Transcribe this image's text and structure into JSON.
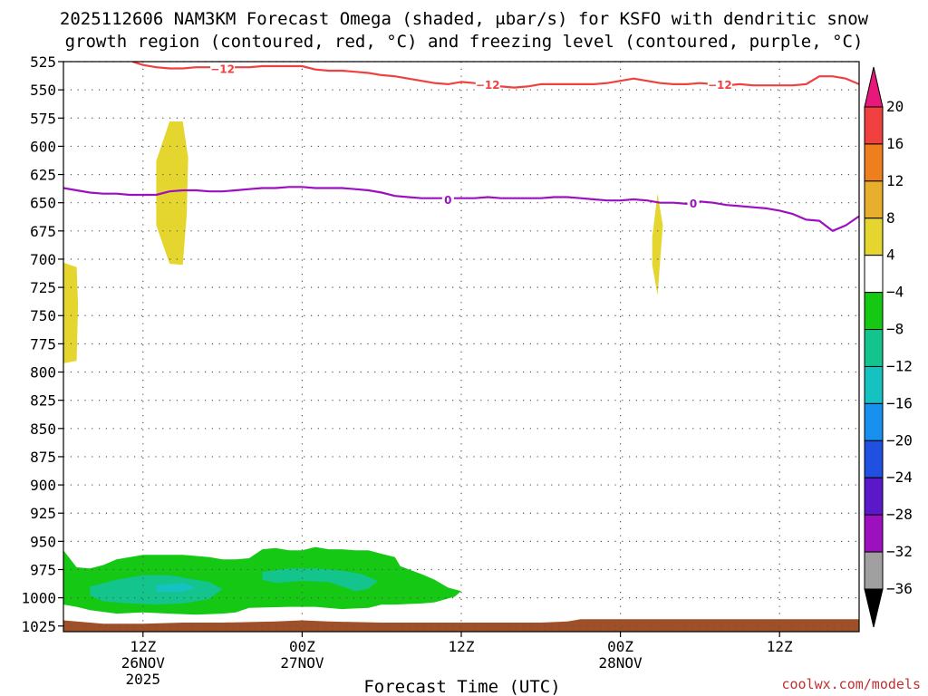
{
  "chart_data": {
    "type": "contour",
    "title": {
      "line1": "2025112606 NAM3KM Forecast Omega (shaded, μbar/s) for KSFO with dendritic snow",
      "line2": "growth region (contoured, red, °C) and freezing level (contoured, purple, °C)"
    },
    "xlabel": "Forecast Time (UTC)",
    "credit": "coolwx.com/models",
    "x_range_hours": [
      0,
      60
    ],
    "y_axis": {
      "scale": "pressure (hPa), inverted",
      "ylim": [
        1030,
        525
      ],
      "ticks": [
        525,
        550,
        575,
        600,
        625,
        650,
        675,
        700,
        725,
        750,
        775,
        800,
        825,
        850,
        875,
        900,
        925,
        950,
        975,
        1000,
        1025
      ]
    },
    "x_ticks": [
      {
        "hour": 6,
        "lines": [
          "12Z",
          "26NOV",
          "2025"
        ]
      },
      {
        "hour": 18,
        "lines": [
          "00Z",
          "27NOV"
        ]
      },
      {
        "hour": 30,
        "lines": [
          "12Z"
        ]
      },
      {
        "hour": 42,
        "lines": [
          "00Z",
          "28NOV"
        ]
      },
      {
        "hour": 54,
        "lines": [
          "12Z"
        ]
      }
    ],
    "colorbar": {
      "labels": [
        "20",
        "16",
        "12",
        "8",
        "4",
        "−4",
        "−8",
        "−12",
        "−16",
        "−20",
        "−24",
        "−28",
        "−32",
        "−36"
      ],
      "bins": [
        {
          "lo": 20,
          "hi": 24,
          "color": "#e8187a"
        },
        {
          "lo": 16,
          "hi": 20,
          "color": "#f04040"
        },
        {
          "lo": 12,
          "hi": 16,
          "color": "#ef7f1e"
        },
        {
          "lo": 8,
          "hi": 12,
          "color": "#e8ae2e"
        },
        {
          "lo": 4,
          "hi": 8,
          "color": "#e4d62f"
        },
        {
          "lo": -4,
          "hi": 4,
          "color": "#ffffff"
        },
        {
          "lo": -8,
          "hi": -4,
          "color": "#14c814"
        },
        {
          "lo": -12,
          "hi": -8,
          "color": "#13c48c"
        },
        {
          "lo": -16,
          "hi": -12,
          "color": "#16c1c1"
        },
        {
          "lo": -20,
          "hi": -16,
          "color": "#1890f0"
        },
        {
          "lo": -24,
          "hi": -20,
          "color": "#2050e0"
        },
        {
          "lo": -28,
          "hi": -24,
          "color": "#5a18c8"
        },
        {
          "lo": -32,
          "hi": -28,
          "color": "#9c10c0"
        },
        {
          "lo": -36,
          "hi": -32,
          "color": "#a0a0a0"
        },
        {
          "lo": -40,
          "hi": -36,
          "color": "#000000"
        }
      ]
    },
    "dendritic_isotherm": {
      "value_C": -12,
      "color": "#f04040",
      "label": "−12",
      "points": [
        [
          5.2,
          525
        ],
        [
          6,
          528
        ],
        [
          7,
          530
        ],
        [
          8,
          531
        ],
        [
          9,
          531
        ],
        [
          10,
          530
        ],
        [
          11,
          530
        ],
        [
          12,
          531
        ],
        [
          13,
          530
        ],
        [
          14,
          530
        ],
        [
          15,
          529
        ],
        [
          16,
          529
        ],
        [
          17,
          529
        ],
        [
          18,
          529
        ],
        [
          19,
          532
        ],
        [
          20,
          533
        ],
        [
          21,
          533
        ],
        [
          22,
          534
        ],
        [
          23,
          535
        ],
        [
          24,
          537
        ],
        [
          25,
          538
        ],
        [
          26,
          540
        ],
        [
          27,
          542
        ],
        [
          28,
          544
        ],
        [
          29,
          545
        ],
        [
          30,
          543
        ],
        [
          31,
          544
        ],
        [
          32,
          546
        ],
        [
          33,
          547
        ],
        [
          34,
          548
        ],
        [
          35,
          547
        ],
        [
          36,
          545
        ],
        [
          37,
          545
        ],
        [
          38,
          545
        ],
        [
          39,
          545
        ],
        [
          40,
          545
        ],
        [
          41,
          544
        ],
        [
          42,
          542
        ],
        [
          43,
          540
        ],
        [
          44,
          542
        ],
        [
          45,
          544
        ],
        [
          46,
          545
        ],
        [
          47,
          545
        ],
        [
          48,
          544
        ],
        [
          49,
          545
        ],
        [
          50,
          546
        ],
        [
          51,
          545
        ],
        [
          52,
          546
        ],
        [
          53,
          546
        ],
        [
          54,
          546
        ],
        [
          55,
          546
        ],
        [
          56,
          545
        ],
        [
          57,
          538
        ],
        [
          58,
          538
        ],
        [
          59,
          540
        ],
        [
          60,
          545
        ]
      ],
      "label_positions": [
        [
          12,
          532
        ],
        [
          32,
          546
        ],
        [
          49.5,
          546
        ]
      ]
    },
    "freezing_level": {
      "value_C": 0,
      "color": "#9c10c0",
      "label": "0",
      "points": [
        [
          0,
          637
        ],
        [
          1,
          639
        ],
        [
          2,
          641
        ],
        [
          3,
          642
        ],
        [
          4,
          642
        ],
        [
          5,
          643
        ],
        [
          6,
          643
        ],
        [
          7,
          643
        ],
        [
          8,
          640
        ],
        [
          9,
          639
        ],
        [
          10,
          639
        ],
        [
          11,
          640
        ],
        [
          12,
          640
        ],
        [
          13,
          639
        ],
        [
          14,
          638
        ],
        [
          15,
          637
        ],
        [
          16,
          637
        ],
        [
          17,
          636
        ],
        [
          18,
          636
        ],
        [
          19,
          637
        ],
        [
          20,
          637
        ],
        [
          21,
          637
        ],
        [
          22,
          638
        ],
        [
          23,
          639
        ],
        [
          24,
          641
        ],
        [
          25,
          644
        ],
        [
          26,
          645
        ],
        [
          27,
          646
        ],
        [
          28,
          646
        ],
        [
          29,
          646
        ],
        [
          30,
          646
        ],
        [
          31,
          646
        ],
        [
          32,
          645
        ],
        [
          33,
          646
        ],
        [
          34,
          646
        ],
        [
          35,
          646
        ],
        [
          36,
          646
        ],
        [
          37,
          645
        ],
        [
          38,
          645
        ],
        [
          39,
          646
        ],
        [
          40,
          647
        ],
        [
          41,
          648
        ],
        [
          42,
          648
        ],
        [
          43,
          647
        ],
        [
          44,
          648
        ],
        [
          45,
          650
        ],
        [
          46,
          650
        ],
        [
          47,
          651
        ],
        [
          48,
          649
        ],
        [
          49,
          650
        ],
        [
          50,
          652
        ],
        [
          51,
          653
        ],
        [
          52,
          654
        ],
        [
          53,
          655
        ],
        [
          54,
          657
        ],
        [
          55,
          660
        ],
        [
          56,
          665
        ],
        [
          57,
          666
        ],
        [
          58,
          675
        ],
        [
          59,
          670
        ],
        [
          60,
          662
        ]
      ],
      "label_positions": [
        [
          29,
          648
        ],
        [
          47.5,
          651
        ]
      ]
    },
    "omega_regions": [
      {
        "level": 4,
        "color": "#e4d62f",
        "points": [
          [
            0,
            703
          ],
          [
            1,
            707
          ],
          [
            1.1,
            740
          ],
          [
            1,
            790
          ],
          [
            0.1,
            792
          ],
          [
            0,
            792
          ]
        ]
      },
      {
        "level": 4,
        "color": "#e4d62f",
        "points": [
          [
            7,
            613
          ],
          [
            8,
            578
          ],
          [
            9,
            578
          ],
          [
            9.4,
            610
          ],
          [
            9.3,
            660
          ],
          [
            9,
            705
          ],
          [
            8,
            704
          ],
          [
            7,
            670
          ]
        ]
      },
      {
        "level": 4,
        "color": "#e4d62f",
        "points": [
          [
            44.4,
            680
          ],
          [
            44.8,
            642
          ],
          [
            45.2,
            670
          ],
          [
            44.8,
            732
          ],
          [
            44.4,
            705
          ]
        ]
      },
      {
        "level": -4,
        "color": "#14c814",
        "points": [
          [
            0,
            958
          ],
          [
            1,
            973
          ],
          [
            2,
            974
          ],
          [
            3,
            971
          ],
          [
            4,
            966
          ],
          [
            5,
            964
          ],
          [
            6,
            962
          ],
          [
            7,
            962
          ],
          [
            9,
            962
          ],
          [
            11,
            964
          ],
          [
            12,
            966
          ],
          [
            13,
            966
          ],
          [
            14,
            965
          ],
          [
            15,
            957
          ],
          [
            16,
            956
          ],
          [
            17,
            958
          ],
          [
            18,
            958
          ],
          [
            19,
            955
          ],
          [
            20,
            957
          ],
          [
            21,
            957
          ],
          [
            22,
            958
          ],
          [
            23,
            958
          ],
          [
            24,
            961
          ],
          [
            25,
            964
          ],
          [
            25.4,
            972
          ],
          [
            27,
            979
          ],
          [
            28,
            984
          ],
          [
            29,
            991
          ],
          [
            30,
            994
          ],
          [
            29.5,
            999
          ],
          [
            28,
            1004
          ],
          [
            27,
            1005
          ],
          [
            25,
            1006
          ],
          [
            24,
            1006
          ],
          [
            23,
            1009
          ],
          [
            21,
            1010
          ],
          [
            19,
            1008
          ],
          [
            17,
            1008
          ],
          [
            14,
            1009
          ],
          [
            13,
            1013
          ],
          [
            12,
            1014
          ],
          [
            10,
            1015
          ],
          [
            8,
            1014
          ],
          [
            6,
            1013
          ],
          [
            4,
            1014
          ],
          [
            2,
            1011
          ],
          [
            1,
            1008
          ],
          [
            0,
            1006
          ]
        ]
      },
      {
        "level": -8,
        "color": "#13c48c",
        "points": [
          [
            2,
            990
          ],
          [
            4,
            984
          ],
          [
            6,
            980
          ],
          [
            8,
            980
          ],
          [
            9.5,
            983
          ],
          [
            11,
            986
          ],
          [
            12,
            992
          ],
          [
            11,
            1001
          ],
          [
            9,
            1005
          ],
          [
            7,
            1006
          ],
          [
            5,
            1005
          ],
          [
            3,
            1003
          ],
          [
            2,
            998
          ]
        ]
      },
      {
        "level": -8,
        "color": "#13c48c",
        "points": [
          [
            15,
            977
          ],
          [
            17,
            974
          ],
          [
            19,
            974
          ],
          [
            21,
            976
          ],
          [
            22.5,
            979
          ],
          [
            23.7,
            985
          ],
          [
            23,
            992
          ],
          [
            22,
            994
          ],
          [
            21,
            990
          ],
          [
            20,
            986
          ],
          [
            18,
            985
          ],
          [
            16,
            987
          ],
          [
            15,
            984
          ]
        ]
      },
      {
        "level": -12,
        "color": "#16c1c1",
        "points": [
          [
            7,
            989
          ],
          [
            9,
            987
          ],
          [
            10,
            991
          ],
          [
            9,
            995
          ],
          [
            7,
            995
          ]
        ]
      }
    ],
    "terrain": {
      "color": "#a05028",
      "top_pressure": [
        [
          0,
          1020
        ],
        [
          3,
          1023
        ],
        [
          6,
          1023
        ],
        [
          9,
          1022
        ],
        [
          12,
          1022
        ],
        [
          16,
          1021
        ],
        [
          18,
          1020
        ],
        [
          20,
          1021
        ],
        [
          24,
          1022
        ],
        [
          30,
          1022
        ],
        [
          36,
          1022
        ],
        [
          38,
          1021
        ],
        [
          39,
          1019
        ],
        [
          45,
          1019
        ],
        [
          50,
          1019
        ],
        [
          55,
          1019
        ],
        [
          60,
          1019
        ]
      ]
    }
  }
}
